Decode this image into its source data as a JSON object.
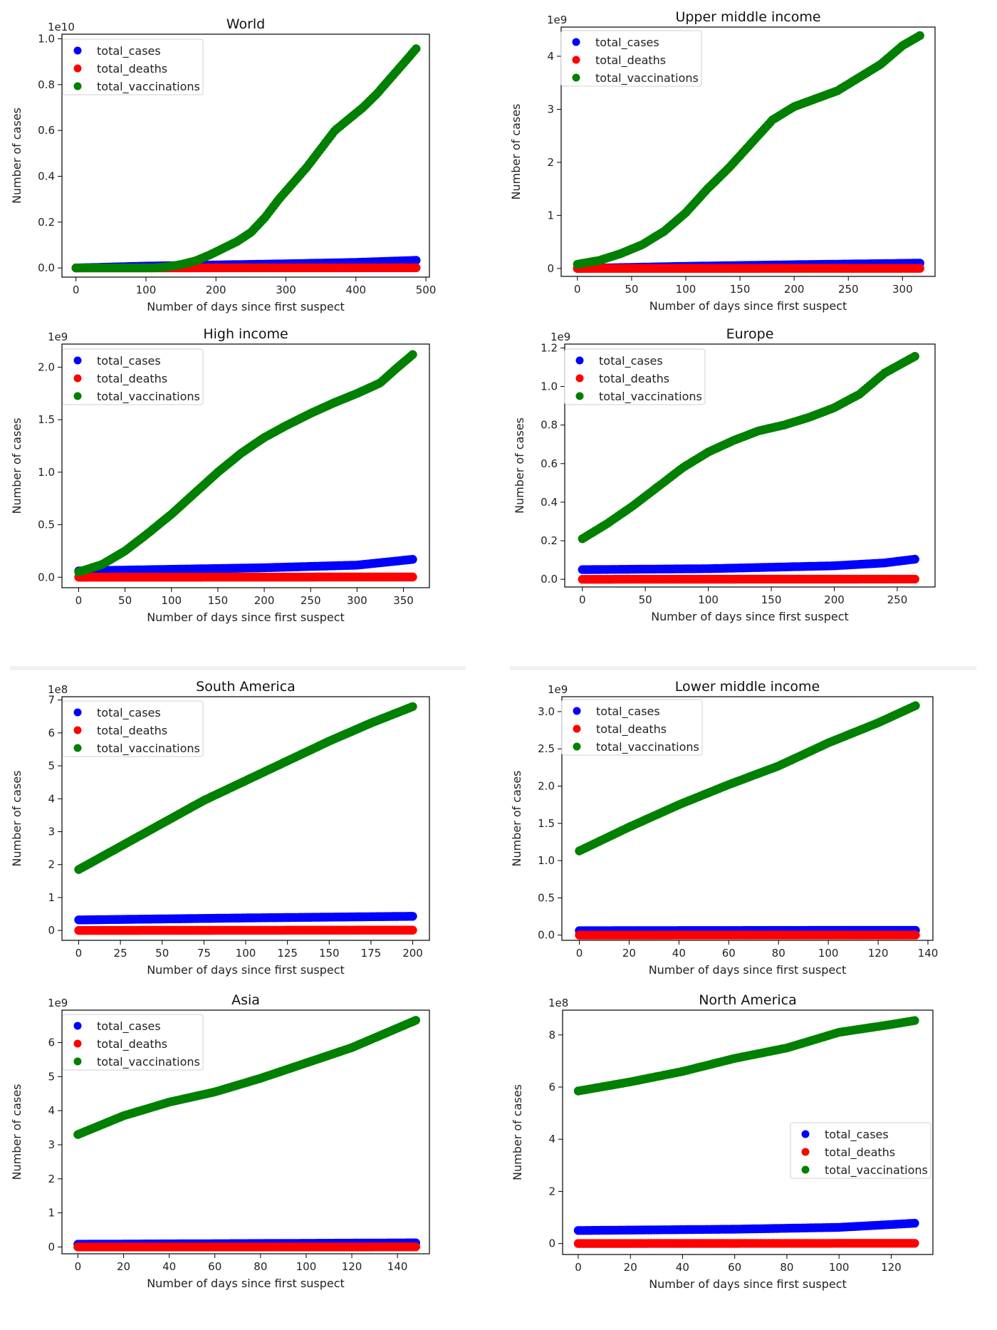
{
  "colors": {
    "total_cases": "#0000ff",
    "total_deaths": "#ff0000",
    "total_vaccinations": "#008000"
  },
  "chart_data": [
    {
      "type": "scatter",
      "title": "World",
      "xlabel": "Number of days since first suspect",
      "ylabel": "Number of cases",
      "offset_label": "1e10",
      "xlim": [
        -20,
        505
      ],
      "ylim": [
        -0.04,
        1.02
      ],
      "xticks": [
        0,
        100,
        200,
        300,
        400,
        500
      ],
      "yticks": [
        0.0,
        0.2,
        0.4,
        0.6,
        0.8,
        1.0
      ],
      "yticks_labels": [
        "0.0",
        "0.2",
        "0.4",
        "0.6",
        "0.8",
        "1.0"
      ],
      "legend_position": "top-left",
      "series": [
        {
          "name": "total_cases",
          "x": [
            0,
            100,
            200,
            300,
            400,
            487
          ],
          "y": [
            0.0,
            0.008,
            0.013,
            0.018,
            0.024,
            0.033
          ]
        },
        {
          "name": "total_deaths",
          "x": [
            0,
            487
          ],
          "y": [
            0.0,
            0.0007
          ]
        },
        {
          "name": "total_vaccinations",
          "x": [
            0,
            110,
            130,
            150,
            170,
            190,
            210,
            230,
            250,
            270,
            290,
            310,
            330,
            350,
            370,
            390,
            410,
            430,
            450,
            470,
            487
          ],
          "y": [
            0.0,
            0.0,
            0.005,
            0.015,
            0.03,
            0.055,
            0.085,
            0.115,
            0.155,
            0.22,
            0.3,
            0.37,
            0.44,
            0.52,
            0.6,
            0.65,
            0.7,
            0.76,
            0.83,
            0.9,
            0.96
          ]
        }
      ]
    },
    {
      "type": "scatter",
      "title": "Upper middle income",
      "xlabel": "Number of days since first suspect",
      "ylabel": "Number of cases",
      "offset_label": "1e9",
      "xlim": [
        -15,
        330
      ],
      "ylim": [
        -0.15,
        4.55
      ],
      "xticks": [
        0,
        50,
        100,
        150,
        200,
        250,
        300
      ],
      "yticks": [
        0,
        1,
        2,
        3,
        4
      ],
      "yticks_labels": [
        "0",
        "1",
        "2",
        "3",
        "4"
      ],
      "legend_position": "top-left",
      "series": [
        {
          "name": "total_cases",
          "x": [
            0,
            100,
            200,
            317
          ],
          "y": [
            0.0,
            0.04,
            0.07,
            0.1
          ]
        },
        {
          "name": "total_deaths",
          "x": [
            0,
            317
          ],
          "y": [
            0.0,
            0.002
          ]
        },
        {
          "name": "total_vaccinations",
          "x": [
            0,
            20,
            40,
            60,
            80,
            100,
            120,
            140,
            160,
            180,
            200,
            220,
            240,
            260,
            280,
            300,
            317
          ],
          "y": [
            0.08,
            0.15,
            0.28,
            0.45,
            0.7,
            1.05,
            1.5,
            1.9,
            2.35,
            2.8,
            3.05,
            3.2,
            3.35,
            3.6,
            3.85,
            4.2,
            4.4
          ]
        }
      ]
    },
    {
      "type": "scatter",
      "title": "High income",
      "xlabel": "Number of days since first suspect",
      "ylabel": "Number of cases",
      "offset_label": "1e9",
      "xlim": [
        -18,
        378
      ],
      "ylim": [
        -0.1,
        2.22
      ],
      "xticks": [
        0,
        50,
        100,
        150,
        200,
        250,
        300,
        350
      ],
      "yticks": [
        0.0,
        0.5,
        1.0,
        1.5,
        2.0
      ],
      "yticks_labels": [
        "0.0",
        "0.5",
        "1.0",
        "1.5",
        "2.0"
      ],
      "legend_position": "top-left",
      "series": [
        {
          "name": "total_cases",
          "x": [
            0,
            100,
            200,
            300,
            360
          ],
          "y": [
            0.06,
            0.075,
            0.09,
            0.115,
            0.17
          ]
        },
        {
          "name": "total_deaths",
          "x": [
            0,
            360
          ],
          "y": [
            0.0,
            0.002
          ]
        },
        {
          "name": "total_vaccinations",
          "x": [
            0,
            25,
            50,
            75,
            100,
            125,
            150,
            175,
            200,
            225,
            250,
            275,
            300,
            325,
            340,
            360
          ],
          "y": [
            0.05,
            0.12,
            0.25,
            0.42,
            0.6,
            0.8,
            1.0,
            1.18,
            1.33,
            1.45,
            1.56,
            1.66,
            1.75,
            1.85,
            1.97,
            2.12
          ]
        }
      ]
    },
    {
      "type": "scatter",
      "title": "Europe",
      "xlabel": "Number of days since first suspect",
      "ylabel": "Number of cases",
      "offset_label": "1e9",
      "xlim": [
        -14,
        280
      ],
      "ylim": [
        -0.04,
        1.22
      ],
      "xticks": [
        0,
        50,
        100,
        150,
        200,
        250
      ],
      "yticks": [
        0.0,
        0.2,
        0.4,
        0.6,
        0.8,
        1.0,
        1.2
      ],
      "yticks_labels": [
        "0.0",
        "0.2",
        "0.4",
        "0.6",
        "0.8",
        "1.0",
        "1.2"
      ],
      "legend_position": "top-left",
      "series": [
        {
          "name": "total_cases",
          "x": [
            0,
            100,
            200,
            240,
            265
          ],
          "y": [
            0.05,
            0.055,
            0.07,
            0.085,
            0.105
          ]
        },
        {
          "name": "total_deaths",
          "x": [
            0,
            265
          ],
          "y": [
            0.0,
            0.001
          ]
        },
        {
          "name": "total_vaccinations",
          "x": [
            0,
            20,
            40,
            60,
            80,
            100,
            120,
            140,
            160,
            180,
            200,
            220,
            240,
            265
          ],
          "y": [
            0.21,
            0.29,
            0.38,
            0.48,
            0.58,
            0.66,
            0.72,
            0.77,
            0.8,
            0.84,
            0.89,
            0.96,
            1.07,
            1.16
          ]
        }
      ]
    },
    {
      "type": "scatter",
      "title": "South America",
      "xlabel": "Number of days since first suspect",
      "ylabel": "Number of cases",
      "offset_label": "1e8",
      "xlim": [
        -10,
        210
      ],
      "ylim": [
        -0.3,
        7.1
      ],
      "xticks": [
        0,
        25,
        50,
        75,
        100,
        125,
        150,
        175,
        200
      ],
      "yticks": [
        0,
        1,
        2,
        3,
        4,
        5,
        6,
        7
      ],
      "yticks_labels": [
        "0",
        "1",
        "2",
        "3",
        "4",
        "5",
        "6",
        "7"
      ],
      "legend_position": "top-left",
      "series": [
        {
          "name": "total_cases",
          "x": [
            0,
            100,
            200
          ],
          "y": [
            0.32,
            0.38,
            0.43
          ]
        },
        {
          "name": "total_deaths",
          "x": [
            0,
            200
          ],
          "y": [
            0.0,
            0.01
          ]
        },
        {
          "name": "total_vaccinations",
          "x": [
            0,
            25,
            50,
            75,
            100,
            125,
            150,
            175,
            200
          ],
          "y": [
            1.85,
            2.55,
            3.25,
            3.95,
            4.55,
            5.15,
            5.75,
            6.3,
            6.8
          ]
        }
      ]
    },
    {
      "type": "scatter",
      "title": "Lower middle income",
      "xlabel": "Number of days since first suspect",
      "ylabel": "Number of cases",
      "offset_label": "1e9",
      "xlim": [
        -7,
        142
      ],
      "ylim": [
        -0.07,
        3.2
      ],
      "xticks": [
        0,
        20,
        40,
        60,
        80,
        100,
        120,
        140
      ],
      "yticks": [
        0.0,
        0.5,
        1.0,
        1.5,
        2.0,
        2.5,
        3.0
      ],
      "yticks_labels": [
        "0.0",
        "0.5",
        "1.0",
        "1.5",
        "2.0",
        "2.5",
        "3.0"
      ],
      "legend_position": "top-left",
      "series": [
        {
          "name": "total_cases",
          "x": [
            0,
            135
          ],
          "y": [
            0.06,
            0.065
          ]
        },
        {
          "name": "total_deaths",
          "x": [
            0,
            135
          ],
          "y": [
            0.0,
            0.001
          ]
        },
        {
          "name": "total_vaccinations",
          "x": [
            0,
            20,
            40,
            60,
            80,
            100,
            120,
            135
          ],
          "y": [
            1.13,
            1.45,
            1.75,
            2.02,
            2.27,
            2.58,
            2.85,
            3.08
          ]
        }
      ]
    },
    {
      "type": "scatter",
      "title": "Asia",
      "xlabel": "Number of days since first suspect",
      "ylabel": "Number of cases",
      "offset_label": "1e9",
      "xlim": [
        -7,
        154
      ],
      "ylim": [
        -0.2,
        6.95
      ],
      "xticks": [
        0,
        20,
        40,
        60,
        80,
        100,
        120,
        140
      ],
      "yticks": [
        0,
        1,
        2,
        3,
        4,
        5,
        6
      ],
      "yticks_labels": [
        "0",
        "1",
        "2",
        "3",
        "4",
        "5",
        "6"
      ],
      "legend_position": "top-left",
      "series": [
        {
          "name": "total_cases",
          "x": [
            0,
            148
          ],
          "y": [
            0.08,
            0.12
          ]
        },
        {
          "name": "total_deaths",
          "x": [
            0,
            148
          ],
          "y": [
            0.0,
            0.002
          ]
        },
        {
          "name": "total_vaccinations",
          "x": [
            0,
            20,
            40,
            60,
            80,
            100,
            120,
            148
          ],
          "y": [
            3.3,
            3.85,
            4.25,
            4.55,
            4.95,
            5.4,
            5.85,
            6.65
          ]
        }
      ]
    },
    {
      "type": "scatter",
      "title": "North America",
      "xlabel": "Number of days since first suspect",
      "ylabel": "Number of cases",
      "offset_label": "1e8",
      "xlim": [
        -6,
        136
      ],
      "ylim": [
        -0.42,
        8.95
      ],
      "xticks": [
        0,
        20,
        40,
        60,
        80,
        100,
        120
      ],
      "yticks": [
        0,
        2,
        4,
        6,
        8
      ],
      "yticks_labels": [
        "0",
        "2",
        "4",
        "6",
        "8"
      ],
      "legend_position": "center-right",
      "series": [
        {
          "name": "total_cases",
          "x": [
            0,
            60,
            100,
            129
          ],
          "y": [
            0.5,
            0.55,
            0.62,
            0.78
          ]
        },
        {
          "name": "total_deaths",
          "x": [
            0,
            129
          ],
          "y": [
            0.0,
            0.01
          ]
        },
        {
          "name": "total_vaccinations",
          "x": [
            0,
            20,
            40,
            60,
            80,
            100,
            120,
            129
          ],
          "y": [
            5.85,
            6.2,
            6.6,
            7.1,
            7.5,
            8.1,
            8.4,
            8.55
          ]
        }
      ]
    }
  ]
}
